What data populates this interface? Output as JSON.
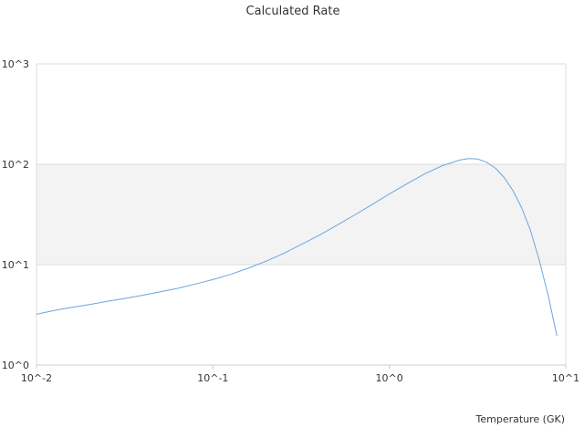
{
  "chart_data": {
    "type": "line",
    "title": "Calculated Rate",
    "xlabel": "Temperature (GK)",
    "ylabel": "",
    "x_scale": "log",
    "y_scale": "log",
    "xlim": [
      0.01,
      10
    ],
    "ylim": [
      1,
      1000
    ],
    "grid": true,
    "x_ticks": [
      {
        "value": 0.01,
        "label": "10^-2"
      },
      {
        "value": 0.1,
        "label": "10^-1"
      },
      {
        "value": 1,
        "label": "10^0"
      },
      {
        "value": 10,
        "label": "10^1"
      }
    ],
    "y_ticks": [
      {
        "value": 1,
        "label": "10^0"
      },
      {
        "value": 10,
        "label": "10^1"
      },
      {
        "value": 100,
        "label": "10^2"
      },
      {
        "value": 1000,
        "label": "10^3"
      }
    ],
    "series": [
      {
        "color": "#6aa6df",
        "x": [
          0.01,
          0.0126,
          0.0158,
          0.02,
          0.0251,
          0.0316,
          0.0398,
          0.0501,
          0.0631,
          0.0794,
          0.1,
          0.126,
          0.158,
          0.2,
          0.251,
          0.316,
          0.398,
          0.501,
          0.631,
          0.794,
          1.0,
          1.26,
          1.58,
          2.0,
          2.51,
          2.82,
          3.16,
          3.55,
          3.98,
          4.47,
          5.01,
          5.62,
          6.31,
          7.08,
          7.94,
          8.91
        ],
        "values": [
          3.2,
          3.5,
          3.75,
          4.0,
          4.3,
          4.6,
          4.95,
          5.35,
          5.8,
          6.4,
          7.1,
          8.0,
          9.2,
          10.8,
          12.9,
          15.8,
          19.5,
          24.5,
          31.0,
          39.5,
          50.5,
          64.0,
          80.0,
          97.0,
          110.0,
          114.0,
          113.0,
          105.0,
          92.0,
          74.0,
          55.0,
          37.0,
          22.0,
          11.0,
          5.0,
          1.95
        ]
      }
    ]
  }
}
